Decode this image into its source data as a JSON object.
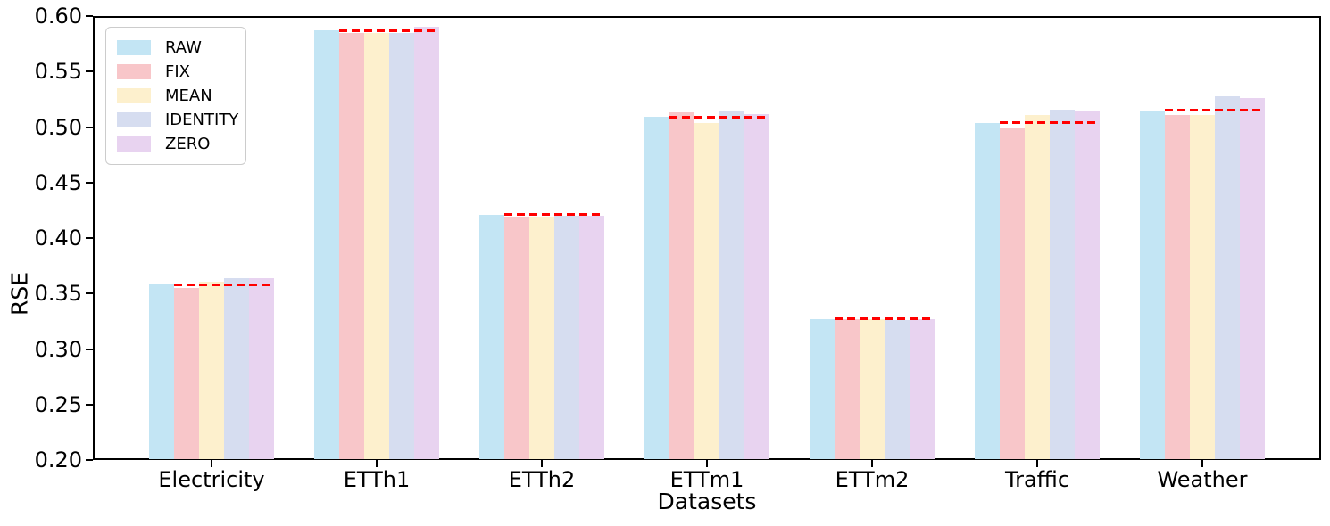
{
  "chart_data": {
    "type": "bar",
    "title": "",
    "xlabel": "Datasets",
    "ylabel": "RSE",
    "ylim": [
      0.2,
      0.6
    ],
    "yticks": [
      0.2,
      0.25,
      0.3,
      0.35,
      0.4,
      0.45,
      0.5,
      0.55,
      0.6
    ],
    "grid": false,
    "legend_position": "upper left",
    "categories": [
      "Electricity",
      "ETTh1",
      "ETTh2",
      "ETTm1",
      "ETTm2",
      "Traffic",
      "Weather"
    ],
    "series": [
      {
        "name": "RAW",
        "color": "#c3e5f4",
        "values": [
          0.358,
          0.587,
          0.421,
          0.509,
          0.327,
          0.504,
          0.515
        ]
      },
      {
        "name": "FIX",
        "color": "#f8c6c9",
        "values": [
          0.355,
          0.585,
          0.419,
          0.513,
          0.327,
          0.499,
          0.511
        ]
      },
      {
        "name": "MEAN",
        "color": "#fdf0cd",
        "values": [
          0.361,
          0.585,
          0.419,
          0.504,
          0.327,
          0.511,
          0.511
        ]
      },
      {
        "name": "IDENTITY",
        "color": "#d6ddf0",
        "values": [
          0.364,
          0.585,
          0.42,
          0.515,
          0.326,
          0.516,
          0.528
        ]
      },
      {
        "name": "ZERO",
        "color": "#e8d3f0",
        "values": [
          0.364,
          0.59,
          0.42,
          0.512,
          0.327,
          0.514,
          0.526
        ]
      }
    ],
    "baseline": {
      "name": "RAW reference line",
      "color": "#ff0000",
      "style": "dashed",
      "values": [
        0.358,
        0.587,
        0.421,
        0.509,
        0.327,
        0.504,
        0.515
      ]
    }
  }
}
